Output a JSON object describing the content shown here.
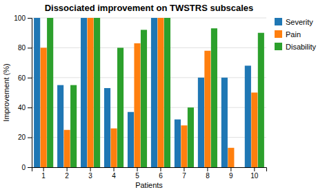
{
  "chart_data": {
    "type": "bar",
    "title": "Dissociated improvement on TWSTRS subscales",
    "xlabel": "Patients",
    "ylabel": "Improvement (%)",
    "categories": [
      "1",
      "2",
      "3",
      "4",
      "5",
      "6",
      "7",
      "8",
      "9",
      "10"
    ],
    "series": [
      {
        "name": "Severity",
        "values": [
          100,
          55,
          100,
          53,
          37,
          100,
          32,
          60,
          60,
          68
        ]
      },
      {
        "name": "Pain",
        "values": [
          80,
          25,
          100,
          26,
          83,
          100,
          28,
          78,
          13,
          50
        ]
      },
      {
        "name": "Disability",
        "values": [
          100,
          55,
          100,
          80,
          92,
          100,
          40,
          93,
          0,
          90
        ]
      }
    ],
    "ylim": [
      0,
      100
    ],
    "yticks": [
      0,
      20,
      40,
      60,
      80,
      100
    ],
    "grid": true,
    "legend": "right"
  }
}
